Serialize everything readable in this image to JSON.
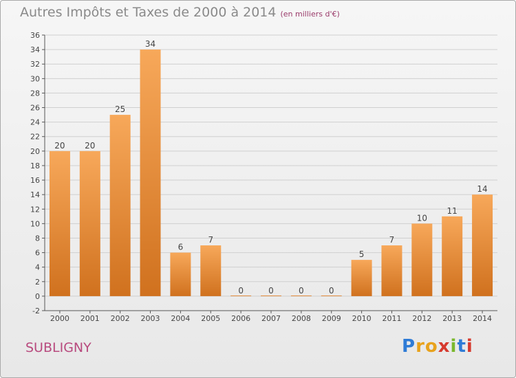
{
  "header": {
    "title": "Autres Impôts et Taxes de 2000 à 2014",
    "subtitle": "(en milliers d'€)"
  },
  "footer": {
    "commune": "SUBLIGNY",
    "logo_letters": [
      "P",
      "r",
      "o",
      "x",
      "i",
      "t",
      "i"
    ],
    "logo_colors": [
      "#2e7bd6",
      "#e8a21c",
      "#e8a21c",
      "#d63a2e",
      "#7ab82e",
      "#2e7bd6",
      "#d63a2e"
    ]
  },
  "chart_data": {
    "type": "bar",
    "title": "Autres Impôts et Taxes de 2000 à 2014",
    "subtitle": "(en milliers d'€)",
    "xlabel": "",
    "ylabel": "",
    "categories": [
      "2000",
      "2001",
      "2002",
      "2003",
      "2004",
      "2005",
      "2006",
      "2007",
      "2008",
      "2009",
      "2010",
      "2011",
      "2012",
      "2013",
      "2014"
    ],
    "values": [
      20,
      20,
      25,
      34,
      6,
      7,
      0,
      0,
      0,
      0,
      5,
      7,
      10,
      11,
      14
    ],
    "ylim": [
      -2,
      36
    ],
    "yticks": [
      -2,
      0,
      2,
      4,
      6,
      8,
      10,
      12,
      14,
      16,
      18,
      20,
      22,
      24,
      26,
      28,
      30,
      32,
      34,
      36
    ],
    "grid": true,
    "legend": "none",
    "colors": {
      "bar_light": "#f7a85a",
      "bar_dark": "#d0711e",
      "grid": "#cfcfcf",
      "axis": "#555555"
    }
  }
}
